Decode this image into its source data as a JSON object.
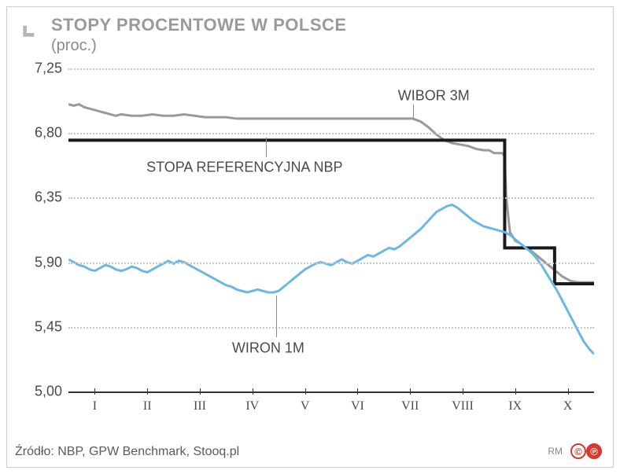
{
  "header": {
    "arrow_color": "#b5b5b5",
    "title": "STOPY PROCENTOWE W POLSCE",
    "title_color": "#9a9a9a",
    "subtitle": "(proc.)",
    "subtitle_color": "#8a8a8a"
  },
  "chart": {
    "type": "line",
    "background_color": "#ffffff",
    "grid_color": "#c8c8c8",
    "axis_color": "#333333",
    "ylim": [
      5.0,
      7.25
    ],
    "yticks": [
      5.0,
      5.45,
      5.9,
      6.35,
      6.8,
      7.25
    ],
    "ytick_labels": [
      "5,00",
      "5,45",
      "5,90",
      "6,35",
      "6,80",
      "7,25"
    ],
    "xlim": [
      0,
      10
    ],
    "xticks": [
      0.5,
      1.5,
      2.5,
      3.5,
      4.5,
      5.5,
      6.5,
      7.5,
      8.5,
      9.5
    ],
    "xtick_labels": [
      "I",
      "II",
      "III",
      "IV",
      "V",
      "VI",
      "VII",
      "VIII",
      "IX",
      "X"
    ],
    "label_fontsize": 18,
    "tick_fontsize": 16,
    "series": [
      {
        "name": "WIBOR 3M",
        "color": "#9a9a9a",
        "width": 3,
        "label": "WIBOR 3M",
        "label_x": 6.95,
        "label_y": 7.06,
        "pointer": {
          "from_x": 6.55,
          "from_y": 7.0,
          "to_x": 6.55,
          "to_y": 6.9
        },
        "data": [
          [
            0.0,
            7.0
          ],
          [
            0.1,
            6.99
          ],
          [
            0.2,
            7.0
          ],
          [
            0.3,
            6.98
          ],
          [
            0.4,
            6.97
          ],
          [
            0.5,
            6.96
          ],
          [
            0.6,
            6.95
          ],
          [
            0.7,
            6.94
          ],
          [
            0.8,
            6.93
          ],
          [
            0.9,
            6.92
          ],
          [
            1.0,
            6.93
          ],
          [
            1.2,
            6.92
          ],
          [
            1.4,
            6.92
          ],
          [
            1.6,
            6.93
          ],
          [
            1.8,
            6.92
          ],
          [
            2.0,
            6.92
          ],
          [
            2.2,
            6.93
          ],
          [
            2.4,
            6.92
          ],
          [
            2.6,
            6.91
          ],
          [
            2.8,
            6.91
          ],
          [
            3.0,
            6.91
          ],
          [
            3.2,
            6.9
          ],
          [
            3.4,
            6.9
          ],
          [
            3.6,
            6.9
          ],
          [
            3.8,
            6.9
          ],
          [
            4.0,
            6.9
          ],
          [
            4.2,
            6.9
          ],
          [
            4.4,
            6.9
          ],
          [
            4.6,
            6.9
          ],
          [
            4.8,
            6.9
          ],
          [
            5.0,
            6.9
          ],
          [
            5.2,
            6.9
          ],
          [
            5.4,
            6.9
          ],
          [
            5.6,
            6.9
          ],
          [
            5.8,
            6.9
          ],
          [
            6.0,
            6.9
          ],
          [
            6.2,
            6.9
          ],
          [
            6.4,
            6.9
          ],
          [
            6.55,
            6.9
          ],
          [
            6.7,
            6.88
          ],
          [
            6.85,
            6.84
          ],
          [
            7.0,
            6.79
          ],
          [
            7.15,
            6.75
          ],
          [
            7.3,
            6.73
          ],
          [
            7.45,
            6.72
          ],
          [
            7.6,
            6.71
          ],
          [
            7.75,
            6.69
          ],
          [
            7.9,
            6.68
          ],
          [
            8.0,
            6.68
          ],
          [
            8.1,
            6.66
          ],
          [
            8.25,
            6.66
          ],
          [
            8.3,
            6.64
          ],
          [
            8.33,
            6.35
          ],
          [
            8.4,
            6.11
          ],
          [
            8.5,
            6.05
          ],
          [
            8.6,
            6.03
          ],
          [
            8.7,
            6.0
          ],
          [
            8.8,
            5.98
          ],
          [
            8.9,
            5.95
          ],
          [
            9.0,
            5.92
          ],
          [
            9.1,
            5.89
          ],
          [
            9.2,
            5.86
          ],
          [
            9.3,
            5.83
          ],
          [
            9.4,
            5.8
          ],
          [
            9.55,
            5.77
          ],
          [
            9.7,
            5.76
          ],
          [
            9.85,
            5.76
          ],
          [
            10.0,
            5.76
          ]
        ]
      },
      {
        "name": "STOPA REFERENCYJNA NBP",
        "color": "#1a1a1a",
        "width": 4,
        "label": "STOPA REFERENCYJNA NBP",
        "label_x": 3.35,
        "label_y": 6.56,
        "pointer": {
          "from_x": 3.75,
          "from_y": 6.63,
          "to_x": 3.75,
          "to_y": 6.77
        },
        "data": [
          [
            0.0,
            6.75
          ],
          [
            8.3,
            6.75
          ],
          [
            8.3,
            6.0
          ],
          [
            9.25,
            6.0
          ],
          [
            9.25,
            5.75
          ],
          [
            10.0,
            5.75
          ]
        ]
      },
      {
        "name": "WIRON 1M",
        "color": "#6bb8e6",
        "width": 3,
        "label": "WIRON 1M",
        "label_x": 3.8,
        "label_y": 5.3,
        "pointer": {
          "from_x": 3.95,
          "from_y": 5.38,
          "to_x": 3.95,
          "to_y": 5.67
        },
        "data": [
          [
            0.0,
            5.92
          ],
          [
            0.1,
            5.9
          ],
          [
            0.2,
            5.88
          ],
          [
            0.3,
            5.87
          ],
          [
            0.4,
            5.85
          ],
          [
            0.5,
            5.84
          ],
          [
            0.6,
            5.86
          ],
          [
            0.7,
            5.88
          ],
          [
            0.8,
            5.87
          ],
          [
            0.9,
            5.85
          ],
          [
            1.0,
            5.84
          ],
          [
            1.1,
            5.85
          ],
          [
            1.2,
            5.87
          ],
          [
            1.3,
            5.86
          ],
          [
            1.4,
            5.84
          ],
          [
            1.5,
            5.83
          ],
          [
            1.6,
            5.85
          ],
          [
            1.7,
            5.87
          ],
          [
            1.8,
            5.89
          ],
          [
            1.9,
            5.91
          ],
          [
            2.0,
            5.89
          ],
          [
            2.1,
            5.91
          ],
          [
            2.2,
            5.9
          ],
          [
            2.3,
            5.88
          ],
          [
            2.4,
            5.86
          ],
          [
            2.5,
            5.84
          ],
          [
            2.6,
            5.82
          ],
          [
            2.7,
            5.8
          ],
          [
            2.8,
            5.78
          ],
          [
            2.9,
            5.76
          ],
          [
            3.0,
            5.74
          ],
          [
            3.1,
            5.73
          ],
          [
            3.2,
            5.71
          ],
          [
            3.3,
            5.7
          ],
          [
            3.4,
            5.69
          ],
          [
            3.5,
            5.7
          ],
          [
            3.6,
            5.71
          ],
          [
            3.7,
            5.7
          ],
          [
            3.8,
            5.69
          ],
          [
            3.9,
            5.69
          ],
          [
            4.0,
            5.7
          ],
          [
            4.1,
            5.73
          ],
          [
            4.2,
            5.76
          ],
          [
            4.3,
            5.79
          ],
          [
            4.4,
            5.82
          ],
          [
            4.5,
            5.85
          ],
          [
            4.6,
            5.87
          ],
          [
            4.7,
            5.89
          ],
          [
            4.8,
            5.9
          ],
          [
            4.9,
            5.89
          ],
          [
            5.0,
            5.88
          ],
          [
            5.1,
            5.9
          ],
          [
            5.2,
            5.92
          ],
          [
            5.3,
            5.9
          ],
          [
            5.4,
            5.89
          ],
          [
            5.5,
            5.91
          ],
          [
            5.6,
            5.93
          ],
          [
            5.7,
            5.95
          ],
          [
            5.8,
            5.94
          ],
          [
            5.9,
            5.96
          ],
          [
            6.0,
            5.98
          ],
          [
            6.1,
            6.0
          ],
          [
            6.2,
            5.99
          ],
          [
            6.3,
            6.01
          ],
          [
            6.4,
            6.04
          ],
          [
            6.5,
            6.07
          ],
          [
            6.6,
            6.1
          ],
          [
            6.7,
            6.13
          ],
          [
            6.8,
            6.17
          ],
          [
            6.9,
            6.21
          ],
          [
            7.0,
            6.25
          ],
          [
            7.1,
            6.27
          ],
          [
            7.2,
            6.29
          ],
          [
            7.3,
            6.3
          ],
          [
            7.4,
            6.28
          ],
          [
            7.5,
            6.25
          ],
          [
            7.6,
            6.22
          ],
          [
            7.7,
            6.19
          ],
          [
            7.8,
            6.17
          ],
          [
            7.9,
            6.15
          ],
          [
            8.0,
            6.14
          ],
          [
            8.1,
            6.13
          ],
          [
            8.2,
            6.12
          ],
          [
            8.3,
            6.11
          ],
          [
            8.4,
            6.09
          ],
          [
            8.5,
            6.06
          ],
          [
            8.6,
            6.03
          ],
          [
            8.7,
            6.0
          ],
          [
            8.8,
            5.97
          ],
          [
            8.9,
            5.93
          ],
          [
            9.0,
            5.88
          ],
          [
            9.1,
            5.82
          ],
          [
            9.2,
            5.76
          ],
          [
            9.3,
            5.7
          ],
          [
            9.4,
            5.63
          ],
          [
            9.5,
            5.56
          ],
          [
            9.6,
            5.49
          ],
          [
            9.7,
            5.42
          ],
          [
            9.8,
            5.35
          ],
          [
            9.9,
            5.3
          ],
          [
            10.0,
            5.26
          ]
        ]
      }
    ]
  },
  "footer": {
    "source": "Źródło: NBP, GPW Benchmark, Stooq.pl",
    "credit": "RM",
    "badges": [
      {
        "text": "©",
        "bg": "#ffffff",
        "border": "#d43a2f",
        "fg": "#d43a2f"
      },
      {
        "text": "℗",
        "bg": "#d43a2f",
        "border": "#d43a2f",
        "fg": "#ffffff"
      }
    ]
  }
}
